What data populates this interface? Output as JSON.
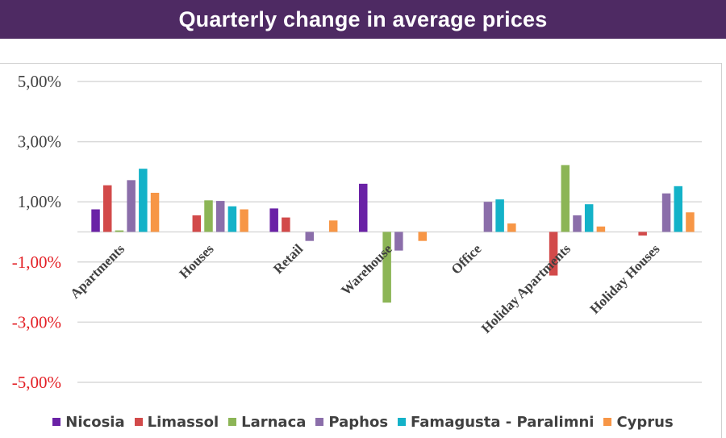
{
  "header": {
    "title": "Quarterly change in average prices"
  },
  "chart_data": {
    "type": "bar",
    "title": "Quarterly change in average prices",
    "xlabel": "",
    "ylabel": "",
    "ylim": [
      -5,
      5
    ],
    "yticks": [
      {
        "value": 5,
        "label": "5,00%",
        "color": "#404040"
      },
      {
        "value": 3,
        "label": "3,00%",
        "color": "#404040"
      },
      {
        "value": 1,
        "label": "1,00%",
        "color": "#404040"
      },
      {
        "value": -1,
        "label": "-1,00%",
        "color": "#e31e24"
      },
      {
        "value": -3,
        "label": "-3,00%",
        "color": "#e31e24"
      },
      {
        "value": -5,
        "label": "-5,00%",
        "color": "#e31e24"
      }
    ],
    "categories": [
      "Apartments",
      "Houses",
      "Retail",
      "Warehouse",
      "Office",
      "Holiday Apartments",
      "Holiday Houses"
    ],
    "series": [
      {
        "name": "Nicosia",
        "color": "#6a22a6",
        "values": [
          0.75,
          0,
          0.78,
          1.6,
          0,
          0,
          0
        ]
      },
      {
        "name": "Limassol",
        "color": "#d24a4a",
        "values": [
          1.55,
          0.55,
          0.48,
          0,
          0,
          -1.45,
          -0.12
        ]
      },
      {
        "name": "Larnaca",
        "color": "#8cb556",
        "values": [
          0.05,
          1.05,
          0,
          -2.35,
          0,
          2.22,
          0
        ]
      },
      {
        "name": "Paphos",
        "color": "#8b6eaa",
        "values": [
          1.72,
          1.03,
          -0.3,
          -0.62,
          1.0,
          0.55,
          1.28
        ]
      },
      {
        "name": "Famagusta - Paralimni",
        "color": "#14b2c8",
        "values": [
          2.1,
          0.85,
          0,
          0,
          1.08,
          0.92,
          1.52
        ]
      },
      {
        "name": "Cyprus",
        "color": "#f79646",
        "values": [
          1.3,
          0.75,
          0.38,
          -0.3,
          0.28,
          0.18,
          0.65
        ]
      }
    ],
    "legend_position": "bottom",
    "grid": true
  }
}
